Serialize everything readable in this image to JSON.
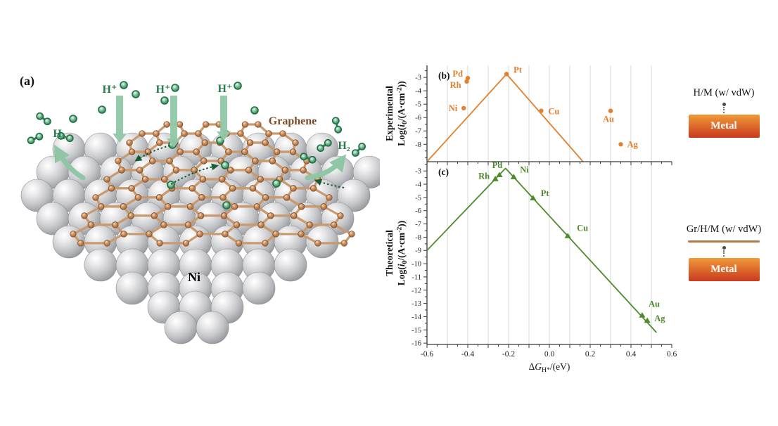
{
  "colors": {
    "orange_series": "#E2802F",
    "green_series": "#4E8B2D",
    "grid": "#D9D9D9",
    "axis": "#3A3A3A",
    "h_label_green": "#2A7A4F",
    "arrow_light_green": "#8FC7A6",
    "dotted_arrow_green": "#155C35",
    "graphene_label_brown": "#7B4A28",
    "graphene_bond": "#C99A6E",
    "graphene_atom": "#B5754A",
    "metal_box_top": "#F09A38",
    "metal_box_bottom": "#C93A1E",
    "legend_graphene_line": "#B27C44"
  },
  "panel_a": {
    "tag": "(a)",
    "hplus": [
      "H⁺",
      "H⁺",
      "H⁺"
    ],
    "h2_left": "H₂",
    "h2_right": "H₂",
    "graphene": "Graphene",
    "metal": "Ni"
  },
  "chart_data": [
    {
      "id": "b",
      "type": "line+scatter",
      "panel_label": "(b)",
      "marker": "circle",
      "color": "#E2802F",
      "ylabel_line1": "Experimental",
      "ylabel_parts": [
        [
          "t",
          "Log("
        ],
        [
          "i",
          "i"
        ],
        [
          "sub",
          "0"
        ],
        [
          "t",
          "/(A·cm"
        ],
        [
          "sup",
          "-2"
        ],
        [
          "t",
          "))"
        ]
      ],
      "xlim": [
        -0.6,
        0.6
      ],
      "ylim": [
        -9.3,
        -2.1
      ],
      "yticks": [
        -3,
        -4,
        -5,
        -6,
        -7,
        -8
      ],
      "line": [
        [
          -0.6,
          -9.3
        ],
        [
          -0.21,
          -2.75
        ],
        [
          0.165,
          -9.3
        ]
      ],
      "points": [
        {
          "metal": "Pd",
          "x": -0.4,
          "y": -3.05
        },
        {
          "metal": "Rh",
          "x": -0.405,
          "y": -3.3
        },
        {
          "metal": "Ni",
          "x": -0.42,
          "y": -5.3
        },
        {
          "metal": "Pt",
          "x": -0.21,
          "y": -2.75
        },
        {
          "metal": "Cu",
          "x": -0.04,
          "y": -5.5
        },
        {
          "metal": "Au",
          "x": 0.3,
          "y": -5.5
        },
        {
          "metal": "Ag",
          "x": 0.35,
          "y": -8.0
        }
      ]
    },
    {
      "id": "c",
      "type": "line+scatter",
      "panel_label": "(c)",
      "marker": "triangle",
      "color": "#4E8B2D",
      "ylabel_line1": "Theoretical",
      "ylabel_parts": [
        [
          "t",
          "Log("
        ],
        [
          "i",
          "i"
        ],
        [
          "sub",
          "0"
        ],
        [
          "t",
          "/(A·cm"
        ],
        [
          "sup",
          "-2"
        ],
        [
          "t",
          "))"
        ]
      ],
      "xlim": [
        -0.6,
        0.6
      ],
      "ylim": [
        -16.1,
        -2.3
      ],
      "yticks": [
        -3,
        -4,
        -5,
        -6,
        -7,
        -8,
        -9,
        -10,
        -11,
        -12,
        -13,
        -14,
        -15,
        -16
      ],
      "xtick_values": [
        -0.6,
        -0.4,
        -0.2,
        0.0,
        0.2,
        0.4,
        0.6
      ],
      "xtick_labels": [
        "-0.6",
        "-0.4",
        "-0.2",
        "0.0",
        "0.2",
        "0.4",
        "0.6"
      ],
      "xlabel_parts": [
        [
          "t",
          "Δ"
        ],
        [
          "i",
          "G"
        ],
        [
          "sub",
          "H*"
        ],
        [
          "t",
          "/(eV)"
        ]
      ],
      "xlabel_plain": "ΔG_H*/(eV)",
      "line": [
        [
          -0.6,
          -9.0
        ],
        [
          -0.215,
          -2.8
        ],
        [
          0.525,
          -15.2
        ]
      ],
      "points": [
        {
          "metal": "Rh",
          "x": -0.265,
          "y": -3.6
        },
        {
          "metal": "Pd",
          "x": -0.245,
          "y": -3.3
        },
        {
          "metal": "Ni",
          "x": -0.175,
          "y": -3.45
        },
        {
          "metal": "Pt",
          "x": -0.08,
          "y": -5.05
        },
        {
          "metal": "Cu",
          "x": 0.09,
          "y": -7.9
        },
        {
          "metal": "Au",
          "x": 0.455,
          "y": -13.9
        },
        {
          "metal": "Ag",
          "x": 0.48,
          "y": -14.3
        }
      ]
    }
  ],
  "legend_top": {
    "title": "H/M (w/ vdW)",
    "metal": "Metal"
  },
  "legend_bottom": {
    "title": "Gr/H/M (w/ vdW)",
    "metal": "Metal"
  }
}
